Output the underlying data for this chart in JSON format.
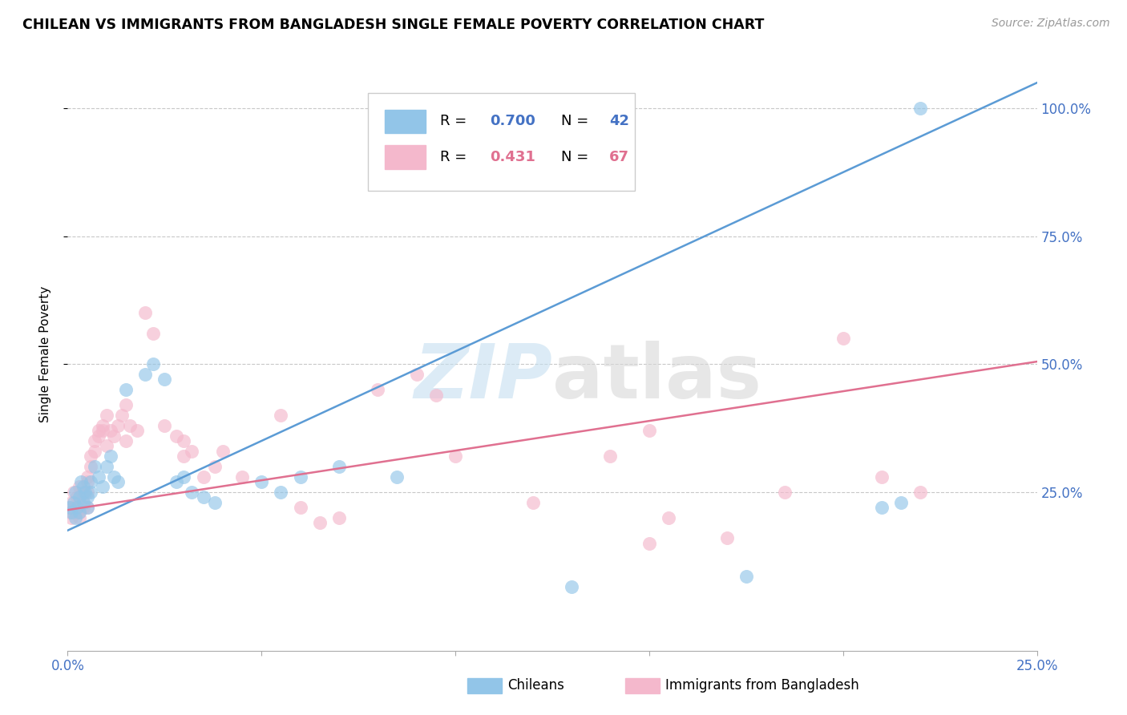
{
  "title": "CHILEAN VS IMMIGRANTS FROM BANGLADESH SINGLE FEMALE POVERTY CORRELATION CHART",
  "source": "Source: ZipAtlas.com",
  "ylabel": "Single Female Poverty",
  "yticks_labels": [
    "100.0%",
    "75.0%",
    "50.0%",
    "25.0%"
  ],
  "ytick_vals": [
    1.0,
    0.75,
    0.5,
    0.25
  ],
  "xlim": [
    0.0,
    0.25
  ],
  "ylim": [
    -0.06,
    1.1
  ],
  "color_blue": "#92c5e8",
  "color_pink": "#f4b8cc",
  "color_blue_line": "#5b9bd5",
  "color_pink_line": "#e07090",
  "color_blue_text": "#4472c4",
  "color_pink_text": "#e07090",
  "chile_trend_x": [
    0.0,
    0.25
  ],
  "chile_trend_y": [
    0.175,
    1.05
  ],
  "bang_trend_x": [
    0.0,
    0.25
  ],
  "bang_trend_y": [
    0.215,
    0.505
  ],
  "chileans_x": [
    0.0005,
    0.001,
    0.0015,
    0.002,
    0.002,
    0.0025,
    0.003,
    0.003,
    0.0035,
    0.004,
    0.004,
    0.0045,
    0.005,
    0.005,
    0.006,
    0.006,
    0.007,
    0.008,
    0.009,
    0.01,
    0.011,
    0.012,
    0.013,
    0.015,
    0.02,
    0.022,
    0.025,
    0.028,
    0.03,
    0.032,
    0.035,
    0.038,
    0.05,
    0.055,
    0.06,
    0.07,
    0.085,
    0.13,
    0.175,
    0.21,
    0.215,
    0.22
  ],
  "chileans_y": [
    0.22,
    0.21,
    0.23,
    0.2,
    0.25,
    0.22,
    0.24,
    0.21,
    0.27,
    0.23,
    0.26,
    0.25,
    0.24,
    0.22,
    0.27,
    0.25,
    0.3,
    0.28,
    0.26,
    0.3,
    0.32,
    0.28,
    0.27,
    0.45,
    0.48,
    0.5,
    0.47,
    0.27,
    0.28,
    0.25,
    0.24,
    0.23,
    0.27,
    0.25,
    0.28,
    0.3,
    0.28,
    0.065,
    0.085,
    0.22,
    0.23,
    1.0
  ],
  "bangladesh_x": [
    0.0003,
    0.0005,
    0.001,
    0.001,
    0.0015,
    0.002,
    0.002,
    0.0025,
    0.003,
    0.003,
    0.003,
    0.004,
    0.004,
    0.004,
    0.005,
    0.005,
    0.005,
    0.006,
    0.006,
    0.007,
    0.007,
    0.008,
    0.008,
    0.009,
    0.009,
    0.01,
    0.01,
    0.011,
    0.012,
    0.013,
    0.014,
    0.015,
    0.015,
    0.016,
    0.018,
    0.02,
    0.022,
    0.025,
    0.028,
    0.03,
    0.03,
    0.032,
    0.035,
    0.038,
    0.04,
    0.045,
    0.055,
    0.06,
    0.065,
    0.07,
    0.08,
    0.09,
    0.095,
    0.12,
    0.14,
    0.155,
    0.17,
    0.185,
    0.2,
    0.21,
    0.22,
    0.1,
    0.15,
    0.002,
    0.003,
    0.005,
    0.15
  ],
  "bangladesh_y": [
    0.22,
    0.21,
    0.23,
    0.2,
    0.25,
    0.22,
    0.21,
    0.24,
    0.23,
    0.21,
    0.26,
    0.25,
    0.23,
    0.22,
    0.27,
    0.25,
    0.28,
    0.3,
    0.32,
    0.35,
    0.33,
    0.37,
    0.36,
    0.38,
    0.37,
    0.4,
    0.34,
    0.37,
    0.36,
    0.38,
    0.4,
    0.42,
    0.35,
    0.38,
    0.37,
    0.6,
    0.56,
    0.38,
    0.36,
    0.35,
    0.32,
    0.33,
    0.28,
    0.3,
    0.33,
    0.28,
    0.4,
    0.22,
    0.19,
    0.2,
    0.45,
    0.48,
    0.44,
    0.23,
    0.32,
    0.2,
    0.16,
    0.25,
    0.55,
    0.28,
    0.25,
    0.32,
    0.37,
    0.21,
    0.2,
    0.22,
    0.15
  ]
}
